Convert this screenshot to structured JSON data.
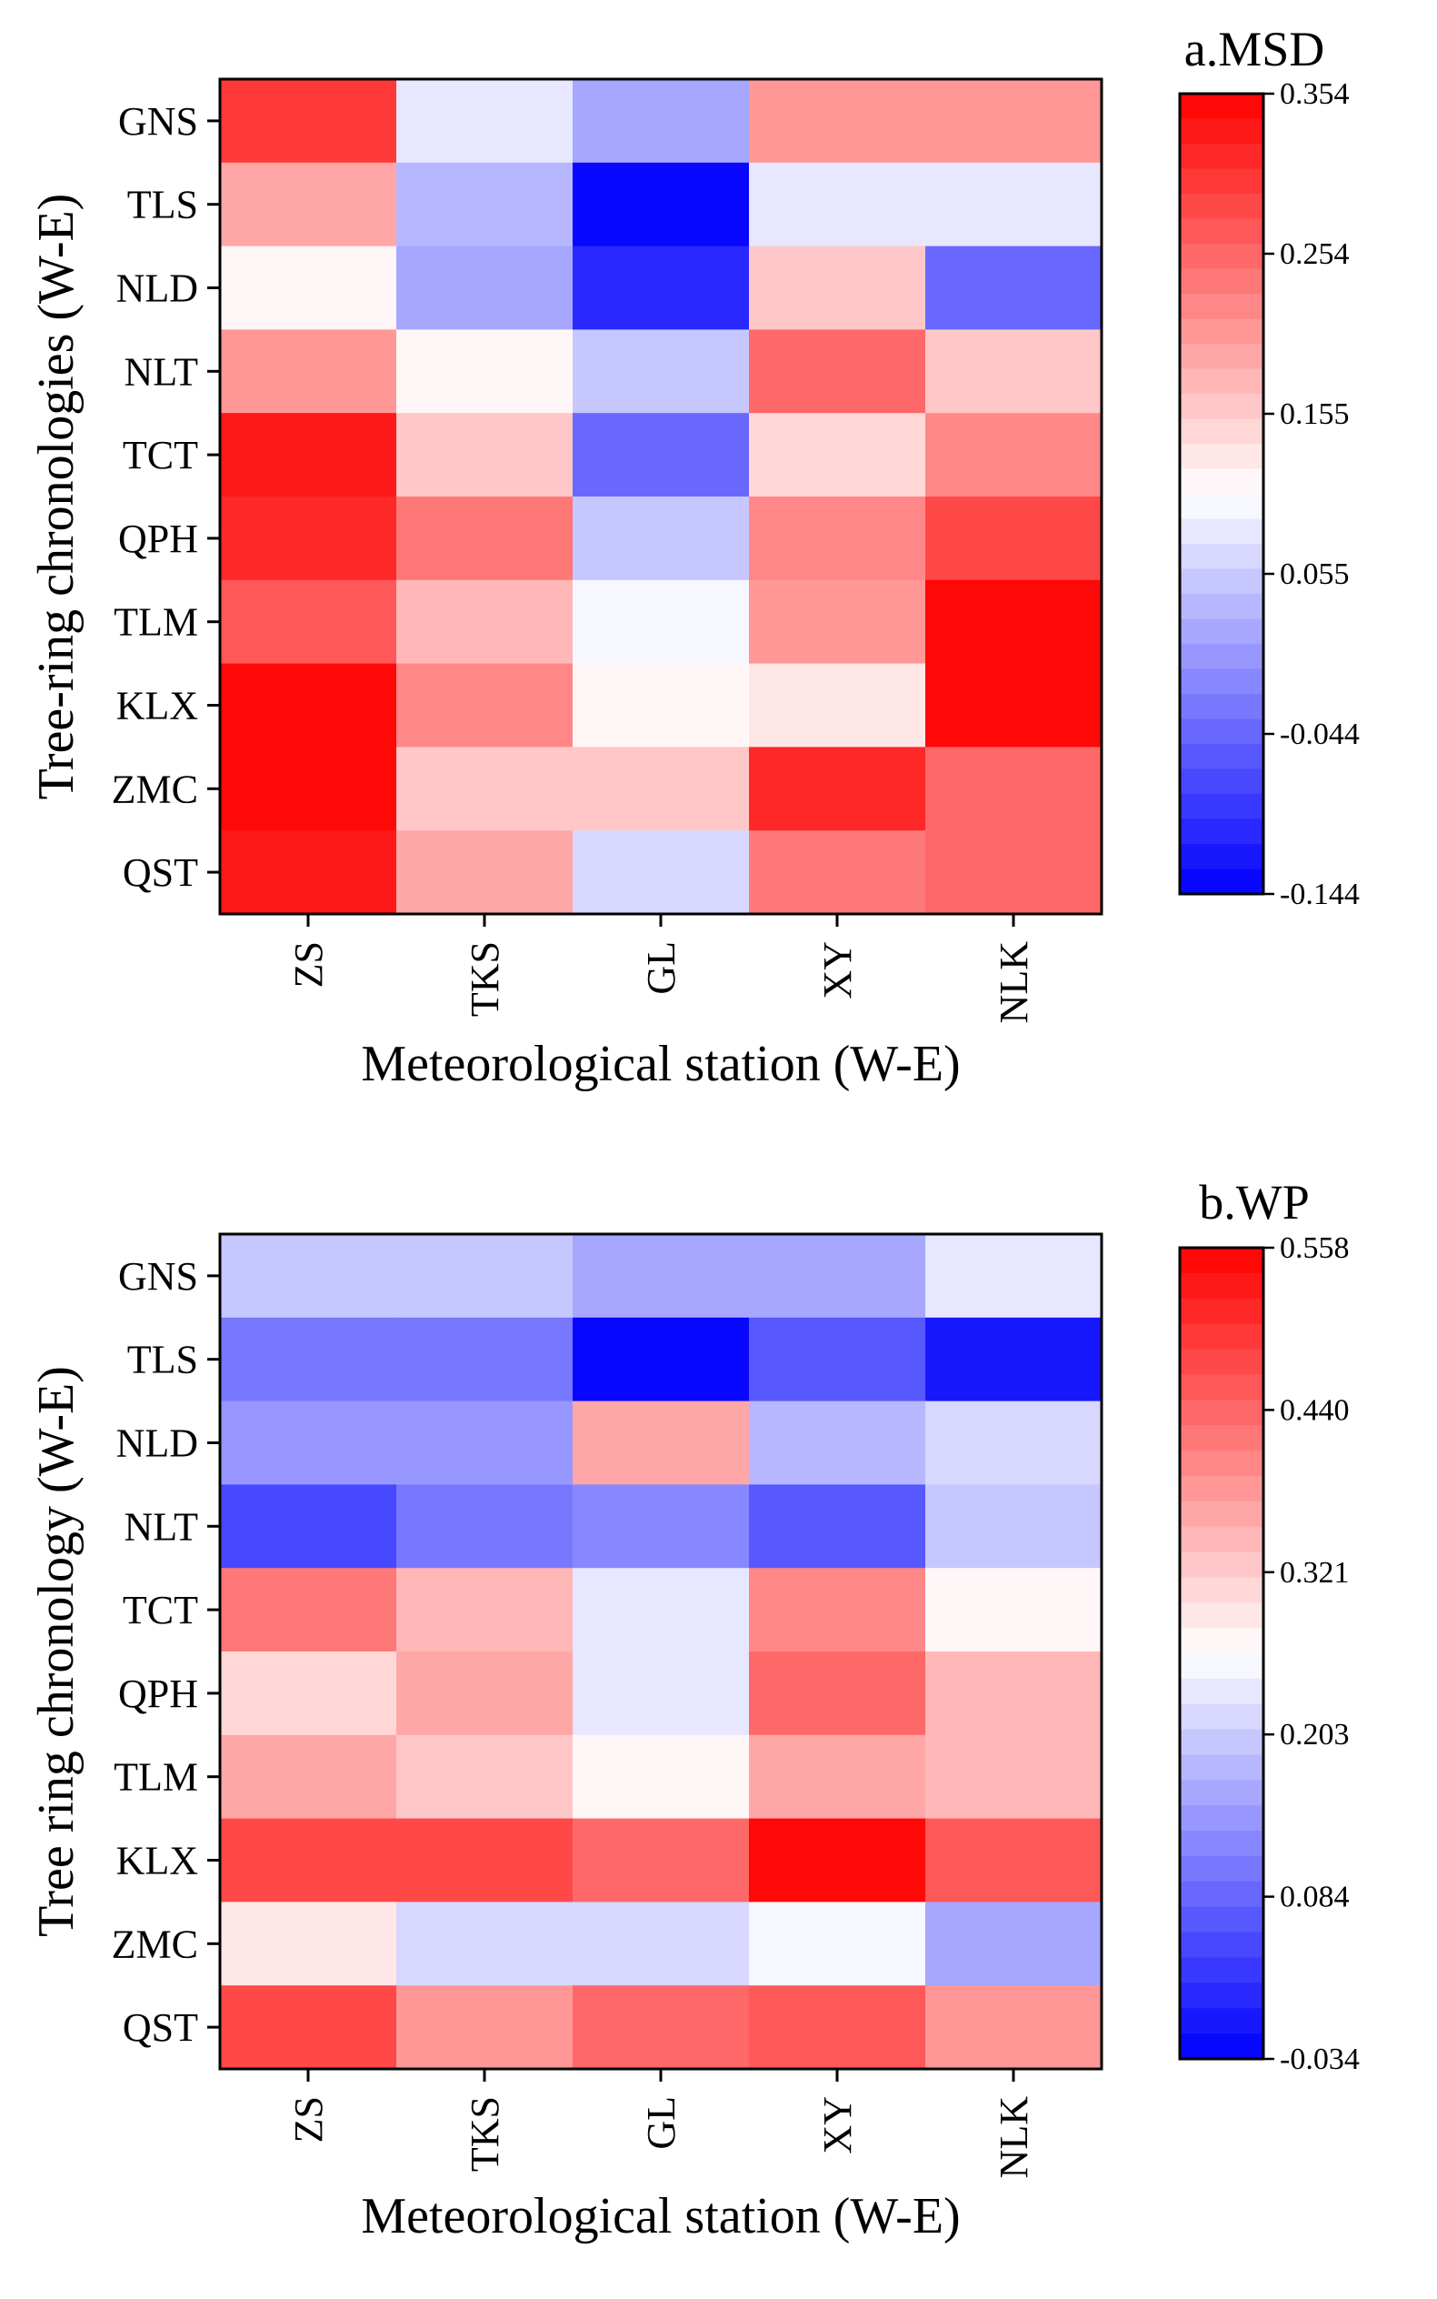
{
  "colors": {
    "low": "#0000ff",
    "mid": "#ffffff",
    "high": "#ff0000"
  },
  "chart_data": [
    {
      "type": "heatmap",
      "title": "a.MSD",
      "xlabel": "Meteorological station (W-E)",
      "ylabel": "Tree-ring chronologies (W-E)",
      "x_categories": [
        "ZS",
        "TKS",
        "GL",
        "XY",
        "NLK"
      ],
      "y_categories": [
        "GNS",
        "TLS",
        "NLD",
        "NLT",
        "TCT",
        "QPH",
        "TLM",
        "KLX",
        "ZMC",
        "QST"
      ],
      "values": [
        [
          0.305,
          0.08,
          0.015,
          0.2,
          0.21
        ],
        [
          0.195,
          0.035,
          -0.144,
          0.085,
          0.085
        ],
        [
          0.115,
          0.02,
          -0.105,
          0.16,
          -0.04
        ],
        [
          0.205,
          0.115,
          0.05,
          0.26,
          0.16
        ],
        [
          0.325,
          0.16,
          -0.04,
          0.14,
          0.215
        ],
        [
          0.315,
          0.235,
          0.045,
          0.215,
          0.29
        ],
        [
          0.27,
          0.18,
          0.095,
          0.2,
          0.345
        ],
        [
          0.354,
          0.215,
          0.11,
          0.13,
          0.354
        ],
        [
          0.345,
          0.16,
          0.16,
          0.32,
          0.26
        ],
        [
          0.33,
          0.195,
          0.065,
          0.245,
          0.255
        ]
      ],
      "colorbar": {
        "min": -0.144,
        "max": 0.354,
        "ticks": [
          "0.354",
          "0.254",
          "0.155",
          "0.055",
          "-0.044",
          "-0.144"
        ]
      }
    },
    {
      "type": "heatmap",
      "title": "b.WP",
      "xlabel": "Meteorological station (W-E)",
      "ylabel": "Tree ring chronology (W-E)",
      "x_categories": [
        "ZS",
        "TKS",
        "GL",
        "XY",
        "NLK"
      ],
      "y_categories": [
        "GNS",
        "TLS",
        "NLD",
        "NLT",
        "TCT",
        "QPH",
        "TLM",
        "KLX",
        "ZMC",
        "QST"
      ],
      "values": [
        [
          0.19,
          0.19,
          0.16,
          0.16,
          0.23
        ],
        [
          0.11,
          0.11,
          -0.034,
          0.075,
          0.0
        ],
        [
          0.15,
          0.15,
          0.355,
          0.185,
          0.22
        ],
        [
          0.045,
          0.105,
          0.13,
          0.06,
          0.2
        ],
        [
          0.42,
          0.35,
          0.24,
          0.4,
          0.27
        ],
        [
          0.3,
          0.355,
          0.24,
          0.445,
          0.345
        ],
        [
          0.36,
          0.33,
          0.265,
          0.36,
          0.34
        ],
        [
          0.47,
          0.47,
          0.44,
          0.558,
          0.46
        ],
        [
          0.295,
          0.21,
          0.225,
          0.245,
          0.155
        ],
        [
          0.47,
          0.38,
          0.44,
          0.46,
          0.38
        ]
      ],
      "colorbar": {
        "min": -0.034,
        "max": 0.558,
        "ticks": [
          "0.558",
          "0.440",
          "0.321",
          "0.203",
          "0.084",
          "-0.034"
        ]
      }
    }
  ]
}
